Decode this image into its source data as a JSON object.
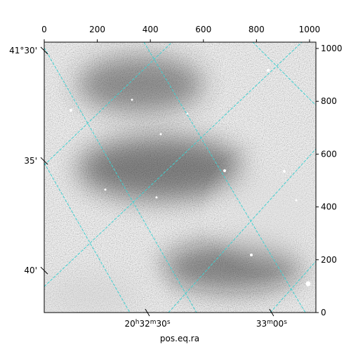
{
  "chart_data": {
    "type": "image",
    "xlabel": "pos.eq.ra",
    "xlim": [
      0,
      1024
    ],
    "ylim": [
      0,
      1024
    ],
    "xticks": [
      0,
      200,
      400,
      600,
      800,
      1000
    ],
    "yticks": [
      0,
      200,
      400,
      600,
      800,
      1000
    ],
    "dec_ticks": [
      {
        "value": 992,
        "label": "41°30'"
      },
      {
        "value": 574,
        "label": "35'"
      },
      {
        "value": 159,
        "label": "40'"
      }
    ],
    "ra_ticks": [
      {
        "value": 389,
        "label": [
          "20",
          "h",
          "32",
          "m",
          "30",
          "s"
        ]
      },
      {
        "value": 857,
        "label": [
          "33",
          "m",
          "00",
          "s"
        ]
      }
    ],
    "grid_color": "#40d0d0"
  }
}
